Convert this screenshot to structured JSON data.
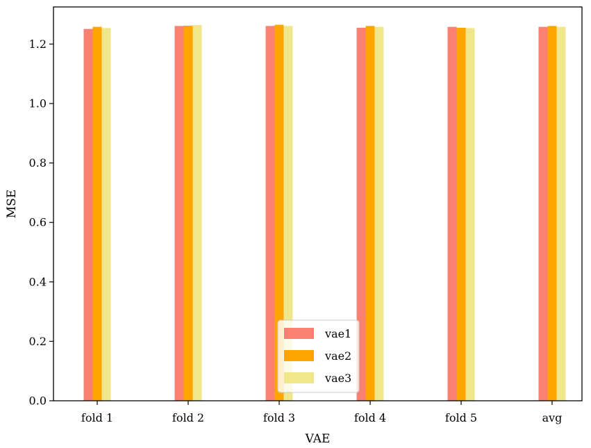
{
  "chart_data": {
    "type": "bar",
    "categories": [
      "fold 1",
      "fold 2",
      "fold 3",
      "fold 4",
      "fold 5",
      "avg"
    ],
    "series": [
      {
        "name": "vae1",
        "color": "#fa8072",
        "values": [
          1.251,
          1.261,
          1.261,
          1.255,
          1.258,
          1.258
        ]
      },
      {
        "name": "vae2",
        "color": "#ffa500",
        "values": [
          1.258,
          1.262,
          1.265,
          1.261,
          1.255,
          1.261
        ]
      },
      {
        "name": "vae3",
        "color": "#f0e68c",
        "values": [
          1.254,
          1.264,
          1.261,
          1.258,
          1.254,
          1.258
        ]
      }
    ],
    "xlabel": "VAE",
    "ylabel": "MSE",
    "ylim": [
      0,
      1.325
    ],
    "yticks": [
      "0.0",
      "0.2",
      "0.4",
      "0.6",
      "0.8",
      "1.0",
      "1.2"
    ],
    "grid": false,
    "legend_position": "lower center"
  }
}
